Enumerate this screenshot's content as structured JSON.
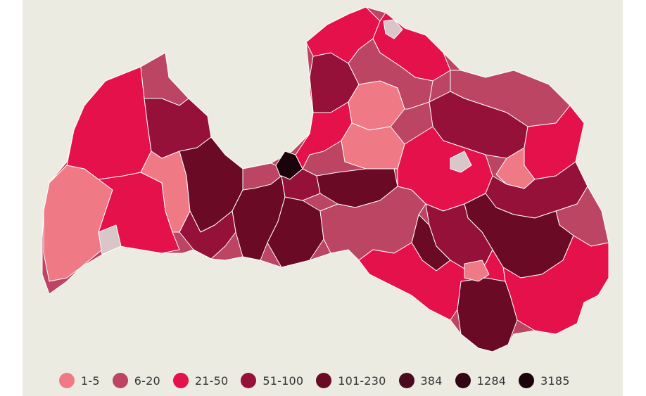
{
  "legend": {
    "items": [
      {
        "label": "1-5",
        "color": "#ef7a86"
      },
      {
        "label": "6-20",
        "color": "#bc4564"
      },
      {
        "label": "21-50",
        "color": "#e5114a"
      },
      {
        "label": "51-100",
        "color": "#96113a"
      },
      {
        "label": "101-230",
        "color": "#6a0a25"
      },
      {
        "label": "384",
        "color": "#4a0a1e"
      },
      {
        "label": "1284",
        "color": "#330615"
      },
      {
        "label": "3185",
        "color": "#1c020a"
      }
    ]
  },
  "map_colors": {
    "no_data": "#d8c6c8",
    "background": "#ecebe2",
    "border": "#ffffff"
  }
}
